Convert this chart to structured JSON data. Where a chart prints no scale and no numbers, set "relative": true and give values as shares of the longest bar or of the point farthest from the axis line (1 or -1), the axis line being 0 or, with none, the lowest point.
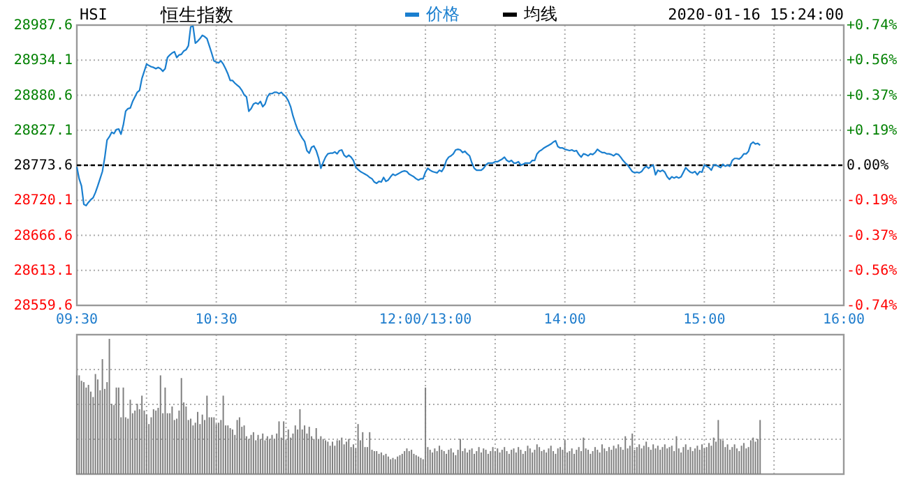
{
  "chart_data": [
    {
      "type": "line",
      "subtitle": "HSI",
      "title": "恒生指数",
      "annotations": [
        "2020-01-16 15:24:00"
      ],
      "categories": [
        "09:30",
        null,
        null,
        null,
        null,
        null,
        null,
        null,
        null,
        null,
        null,
        null,
        null,
        null,
        null,
        null,
        null,
        null,
        null,
        null,
        null,
        null,
        null,
        null,
        null,
        null,
        null,
        null,
        null,
        null,
        null,
        null,
        null,
        null,
        null,
        null,
        null,
        null,
        null,
        null,
        null,
        null,
        null,
        null,
        null,
        null,
        null,
        null,
        null,
        null,
        null,
        null,
        null,
        null,
        null,
        null,
        null,
        null,
        null,
        null,
        "10:30",
        null,
        null,
        null,
        null,
        null,
        null,
        null,
        null,
        null,
        null,
        null,
        null,
        null,
        null,
        null,
        null,
        null,
        null,
        null,
        null,
        null,
        null,
        null,
        null,
        null,
        null,
        null,
        null,
        null,
        null,
        null,
        null,
        null,
        null,
        null,
        null,
        null,
        null,
        null,
        null,
        null,
        null,
        null,
        null,
        null,
        null,
        null,
        null,
        null,
        null,
        null,
        null,
        null,
        null,
        null,
        null,
        null,
        null,
        null,
        null,
        null,
        null,
        null,
        null,
        null,
        null,
        null,
        null,
        null,
        null,
        null,
        null,
        null,
        null,
        null,
        null,
        null,
        null,
        null,
        null,
        null,
        null,
        null,
        null,
        null,
        null,
        null,
        null,
        null,
        "12:00/13:00",
        null,
        null,
        null,
        null,
        null,
        null,
        null,
        null,
        null,
        null,
        null,
        null,
        null,
        null,
        null,
        null,
        null,
        null,
        null,
        null,
        null,
        null,
        null,
        null,
        null,
        null,
        null,
        null,
        null,
        null,
        null,
        null,
        null,
        null,
        null,
        null,
        null,
        null,
        null,
        null,
        null,
        null,
        null,
        null,
        null,
        null,
        null,
        null,
        null,
        null,
        null,
        null,
        null,
        null,
        null,
        null,
        null,
        null,
        null,
        "14:00",
        null,
        null,
        null,
        null,
        null,
        null,
        null,
        null,
        null,
        null,
        null,
        null,
        null,
        null,
        null,
        null,
        null,
        null,
        null,
        null,
        null,
        null,
        null,
        null,
        null,
        null,
        null,
        null,
        null,
        null,
        null,
        null,
        null,
        null,
        null,
        null,
        null,
        null,
        null,
        null,
        null,
        null,
        null,
        null,
        null,
        null,
        null,
        null,
        null,
        null,
        null,
        null,
        null,
        null,
        null,
        null,
        null,
        null,
        null,
        "15:00",
        null,
        null,
        null,
        null,
        null,
        null,
        null,
        null,
        null,
        null,
        null,
        null,
        null,
        null,
        null,
        null,
        null,
        null,
        null,
        null,
        null,
        null,
        null,
        null,
        null,
        null,
        null,
        null,
        null,
        null,
        null,
        null,
        null,
        null,
        null,
        null,
        null,
        null,
        null,
        null,
        null,
        null,
        null,
        null,
        null,
        null,
        null,
        null,
        null,
        null,
        null,
        null,
        null,
        null,
        null,
        null,
        null,
        null,
        null,
        "16:00"
      ],
      "ylim": [
        28559.6,
        28987.6
      ],
      "yticks": [
        28559.6,
        28613.1,
        28666.6,
        28720.1,
        28773.6,
        28827.1,
        28880.6,
        28934.1,
        28987.6
      ],
      "y2lim": [
        -0.744,
        0.744
      ],
      "y2ticks": [
        {
          "value": -0.744,
          "label": "-0.74%"
        },
        {
          "value": -0.558,
          "label": "-0.56%"
        },
        {
          "value": -0.372,
          "label": "-0.37%"
        },
        {
          "value": -0.186,
          "label": "-0.19%"
        },
        {
          "value": 0,
          "label": "0.00%"
        },
        {
          "value": 0.186,
          "label": "+0.19%"
        },
        {
          "value": 0.372,
          "label": "+0.37%"
        },
        {
          "value": 0.558,
          "label": "+0.56%"
        },
        {
          "value": 0.744,
          "label": "+0.74%"
        }
      ],
      "grid": true,
      "legend": "top",
      "ref_lines": [
        {
          "axis": "y",
          "value": 28773.6,
          "color": "#000000",
          "line_style": "dashed"
        }
      ],
      "series": [
        {
          "name": "价格",
          "color": "#1a7fcf",
          "values": [
            28771,
            28753,
            28742,
            28714,
            28712,
            28717,
            28721,
            28724,
            28732,
            28742,
            28753,
            28764,
            28785,
            28812,
            28817,
            28824,
            28822,
            28828,
            28829,
            28821,
            28835,
            28856,
            28860,
            28861,
            28871,
            28878,
            28885,
            28888,
            28906,
            28917,
            28928,
            28926,
            28924,
            28923,
            28921,
            28923,
            28921,
            28917,
            28921,
            28938,
            28942,
            28945,
            28947,
            28938,
            28942,
            28943,
            28948,
            28950,
            28956,
            28985,
            28986,
            28960,
            28963,
            28967,
            28972,
            28970,
            28967,
            28956,
            28945,
            28933,
            28931,
            28930,
            28933,
            28928,
            28921,
            28913,
            28903,
            28903,
            28899,
            28896,
            28893,
            28888,
            28881,
            28878,
            28856,
            28860,
            28867,
            28869,
            28867,
            28871,
            28863,
            28867,
            28878,
            28883,
            28883,
            28885,
            28885,
            28883,
            28885,
            28881,
            28878,
            28872,
            28863,
            28849,
            28838,
            28828,
            28821,
            28815,
            28810,
            28796,
            28792,
            28801,
            28803,
            28796,
            28785,
            28769,
            28778,
            28786,
            28791,
            28792,
            28792,
            28794,
            28791,
            28796,
            28797,
            28789,
            28786,
            28789,
            28786,
            28781,
            28771,
            28767,
            28764,
            28762,
            28760,
            28758,
            28755,
            28753,
            28748,
            28746,
            28749,
            28748,
            28755,
            28749,
            28751,
            28756,
            28760,
            28758,
            28760,
            28762,
            28764,
            28765,
            28764,
            28760,
            28758,
            28756,
            28753,
            28751,
            28753,
            28753,
            28763,
            28769,
            28766,
            28764,
            28763,
            28762,
            28766,
            28764,
            28770,
            28781,
            28786,
            28788,
            28791,
            28797,
            28798,
            28797,
            28793,
            28795,
            28791,
            28788,
            28777,
            28769,
            28766,
            28766,
            28766,
            28769,
            28774,
            28777,
            28777,
            28777,
            28779,
            28779,
            28781,
            28783,
            28786,
            28781,
            28779,
            28781,
            28777,
            28777,
            28779,
            28774,
            28775,
            28777,
            28777,
            28777,
            28781,
            28781,
            28791,
            28795,
            28797,
            28800,
            28802,
            28804,
            28806,
            28809,
            28811,
            28802,
            28800,
            28800,
            28798,
            28797,
            28796,
            28797,
            28795,
            28796,
            28790,
            28786,
            28791,
            28790,
            28788,
            28791,
            28790,
            28793,
            28798,
            28795,
            28793,
            28793,
            28791,
            28791,
            28790,
            28788,
            28791,
            28790,
            28786,
            28781,
            28777,
            28774,
            28769,
            28764,
            28762,
            28763,
            28762,
            28764,
            28769,
            28772,
            28769,
            28772,
            28774,
            28759,
            28766,
            28764,
            28766,
            28763,
            28756,
            28752,
            28756,
            28754,
            28756,
            28754,
            28756,
            28763,
            28770,
            28766,
            28763,
            28762,
            28764,
            28759,
            28764,
            28763,
            28774,
            28772,
            28770,
            28766,
            28774,
            28774,
            28772,
            28770,
            28775,
            28772,
            28774,
            28772,
            28781,
            28784,
            28784,
            28783,
            28786,
            28791,
            28791,
            28795,
            28806,
            28809,
            28806,
            28807,
            28804,
            null,
            null,
            null,
            null,
            null,
            null,
            null,
            null,
            null,
            null,
            null,
            null,
            null,
            null,
            null,
            null,
            null,
            null,
            null,
            null,
            null,
            null,
            null,
            null,
            null,
            null,
            null,
            null,
            null,
            null,
            null,
            null,
            null,
            null,
            null,
            null
          ]
        },
        {
          "name": "均线",
          "color": "#000000",
          "values": [
            null,
            null,
            null,
            null,
            null,
            null,
            null,
            null,
            null,
            null,
            null,
            null,
            null,
            null,
            null,
            null,
            null,
            null,
            null,
            null,
            null,
            null,
            null,
            null,
            null,
            null,
            null,
            null,
            null,
            null,
            null,
            null,
            null,
            null,
            null,
            null,
            null,
            null,
            null,
            null,
            null,
            null,
            null,
            null,
            null,
            null,
            null,
            null,
            null,
            null,
            null,
            null,
            null,
            null,
            null,
            null,
            null,
            null,
            null,
            null,
            null,
            null,
            null,
            null,
            null,
            null,
            null,
            null,
            null,
            null,
            null,
            null,
            null,
            null,
            null,
            null,
            null,
            null,
            null,
            null,
            null,
            null,
            null,
            null,
            null,
            null,
            null,
            null,
            null,
            null,
            null,
            null,
            null,
            null,
            null,
            null,
            null,
            null,
            null,
            null,
            null,
            null,
            null,
            null,
            null,
            null,
            null,
            null,
            null,
            null,
            null,
            null,
            null,
            null,
            null,
            null,
            null,
            null,
            null,
            null,
            null,
            null,
            null,
            null,
            null,
            null,
            null,
            null,
            null,
            null,
            null,
            null,
            null,
            null,
            null,
            null,
            null,
            null,
            null,
            null,
            null,
            null,
            null,
            null,
            null,
            null,
            null,
            null,
            null,
            null,
            null,
            null,
            null,
            null,
            null,
            null,
            null,
            null,
            null,
            null,
            null,
            null,
            null,
            null,
            null,
            null,
            null,
            null,
            null,
            null,
            null,
            null,
            null,
            null,
            null,
            null,
            null,
            null,
            null,
            null,
            null,
            null,
            null,
            null,
            null,
            null,
            null,
            null,
            null,
            null,
            null,
            null,
            null,
            null,
            null,
            null,
            null,
            null,
            null,
            null,
            null,
            null,
            null,
            null,
            null,
            null,
            null,
            null,
            null,
            null,
            null,
            null,
            null,
            null,
            null,
            null,
            null,
            null,
            null,
            null,
            null,
            null,
            null,
            null,
            null,
            null,
            null,
            null,
            null,
            null,
            null,
            null,
            null,
            null,
            null,
            null,
            null,
            null,
            null,
            null,
            null,
            null,
            null,
            null,
            null,
            null,
            null,
            null,
            null,
            null,
            null,
            null,
            null,
            null,
            null,
            null,
            null,
            null,
            null,
            null,
            null,
            null,
            null,
            null,
            null,
            null,
            null,
            null,
            null,
            null,
            null,
            null,
            null,
            null,
            null,
            null,
            null,
            null,
            null,
            null,
            null,
            null,
            null,
            null,
            null,
            null,
            null,
            null,
            null,
            null,
            null,
            null,
            null,
            null,
            null,
            null,
            null,
            null,
            null,
            null,
            null,
            null,
            null,
            null,
            null,
            null,
            null,
            null,
            null,
            null,
            null,
            null,
            null,
            null,
            null,
            null,
            null,
            null,
            null,
            null,
            null,
            null,
            null,
            null,
            null,
            null,
            null,
            null,
            null,
            null,
            null
          ]
        }
      ]
    },
    {
      "type": "bar",
      "relative": true,
      "color": "#808080",
      "grid": true,
      "categories": [
        null,
        null,
        null,
        null,
        null,
        null,
        null,
        null,
        null,
        null,
        null,
        null,
        null,
        null,
        null,
        null,
        null,
        null,
        null,
        null,
        null,
        null,
        null,
        null,
        null,
        null,
        null,
        null,
        null,
        null,
        null,
        null,
        null,
        null,
        null,
        null,
        null,
        null,
        null,
        null,
        null,
        null,
        null,
        null,
        null,
        null,
        null,
        null,
        null,
        null,
        null,
        null,
        null,
        null,
        null,
        null,
        null,
        null,
        null,
        null,
        null,
        null,
        null,
        null,
        null,
        null,
        null,
        null,
        null,
        null,
        null,
        null,
        null,
        null,
        null,
        null,
        null,
        null,
        null,
        null,
        null,
        null,
        null,
        null,
        null,
        null,
        null,
        null,
        null,
        null,
        null,
        null,
        null,
        null,
        null,
        null,
        null,
        null,
        null,
        null,
        null,
        null,
        null,
        null,
        null,
        null,
        null,
        null,
        null,
        null,
        null,
        null,
        null,
        null,
        null,
        null,
        null,
        null,
        null,
        null,
        null,
        null,
        null,
        null,
        null,
        null,
        null,
        null,
        null,
        null,
        null,
        null,
        null,
        null,
        null,
        null,
        null,
        null,
        null,
        null,
        null,
        null,
        null,
        null,
        null,
        null,
        null,
        null,
        null,
        null,
        null,
        null,
        null,
        null,
        null,
        null,
        null,
        null,
        null,
        null,
        null,
        null,
        null,
        null,
        null,
        null,
        null,
        null,
        null,
        null,
        null,
        null,
        null,
        null,
        null,
        null,
        null,
        null,
        null,
        null,
        null,
        null,
        null,
        null,
        null,
        null,
        null,
        null,
        null,
        null,
        null,
        null,
        null,
        null,
        null,
        null,
        null,
        null,
        null,
        null,
        null,
        null,
        null,
        null,
        null,
        null,
        null,
        null,
        null,
        null,
        null,
        null,
        null,
        null,
        null,
        null,
        null,
        null,
        null,
        null,
        null,
        null,
        null,
        null,
        null,
        null,
        null,
        null,
        null,
        null,
        null,
        null,
        null,
        null,
        null,
        null,
        null,
        null,
        null,
        null,
        null,
        null,
        null,
        null,
        null,
        null,
        null,
        null,
        null,
        null,
        null,
        null,
        null,
        null,
        null,
        null,
        null,
        null,
        null,
        null,
        null,
        null,
        null,
        null,
        null,
        null,
        null,
        null,
        null,
        null,
        null,
        null,
        null,
        null,
        null,
        null,
        null,
        null,
        null,
        null,
        null,
        null,
        null,
        null,
        null,
        null,
        null,
        null,
        null,
        null,
        null,
        null,
        null,
        null,
        null,
        null,
        null,
        null,
        null,
        null,
        null,
        null,
        null,
        null,
        null,
        null,
        null,
        null,
        null,
        null,
        null,
        null,
        null,
        null,
        null,
        null,
        null,
        null,
        null,
        null,
        null,
        null,
        null,
        null,
        null,
        null,
        null,
        null,
        null,
        null,
        null
      ],
      "values": [
        0.73,
        0.73,
        0.69,
        0.68,
        0.64,
        0.66,
        0.61,
        0.57,
        0.74,
        0.7,
        0.62,
        0.85,
        0.63,
        0.68,
        1.0,
        0.52,
        0.51,
        0.64,
        0.64,
        0.42,
        0.64,
        0.42,
        0.41,
        0.55,
        0.45,
        0.47,
        0.52,
        0.48,
        0.58,
        0.47,
        0.44,
        0.37,
        0.42,
        0.48,
        0.47,
        0.49,
        0.73,
        0.45,
        0.64,
        0.45,
        0.45,
        0.5,
        0.4,
        0.41,
        0.47,
        0.71,
        0.53,
        0.5,
        0.4,
        0.41,
        0.36,
        0.38,
        0.46,
        0.37,
        0.44,
        0.4,
        0.58,
        0.42,
        0.42,
        0.42,
        0.37,
        0.38,
        0.4,
        0.58,
        0.36,
        0.36,
        0.34,
        0.33,
        0.29,
        0.4,
        0.42,
        0.35,
        0.36,
        0.28,
        0.26,
        0.29,
        0.31,
        0.25,
        0.29,
        0.26,
        0.3,
        0.25,
        0.28,
        0.26,
        0.29,
        0.26,
        0.3,
        0.39,
        0.27,
        0.39,
        0.25,
        0.33,
        0.27,
        0.3,
        0.36,
        0.33,
        0.48,
        0.33,
        0.36,
        0.3,
        0.35,
        0.28,
        0.26,
        0.34,
        0.26,
        0.28,
        0.26,
        0.25,
        0.24,
        0.21,
        0.24,
        0.21,
        0.25,
        0.25,
        0.27,
        0.22,
        0.24,
        0.26,
        0.2,
        0.22,
        0.19,
        0.37,
        0.25,
        0.31,
        0.2,
        0.2,
        0.31,
        0.18,
        0.17,
        0.17,
        0.15,
        0.16,
        0.14,
        0.15,
        0.13,
        0.11,
        0.12,
        0.11,
        0.13,
        0.14,
        0.15,
        0.17,
        0.19,
        0.17,
        0.18,
        0.15,
        0.14,
        0.13,
        0.12,
        0.11,
        0.64,
        0.2,
        0.18,
        0.16,
        0.19,
        0.17,
        0.21,
        0.18,
        0.17,
        0.15,
        0.18,
        0.19,
        0.16,
        0.14,
        0.18,
        0.26,
        0.17,
        0.19,
        0.16,
        0.18,
        0.19,
        0.15,
        0.17,
        0.2,
        0.16,
        0.19,
        0.18,
        0.15,
        0.17,
        0.2,
        0.17,
        0.19,
        0.16,
        0.18,
        0.2,
        0.17,
        0.15,
        0.18,
        0.19,
        0.16,
        0.2,
        0.18,
        0.15,
        0.17,
        0.21,
        0.19,
        0.16,
        0.18,
        0.22,
        0.2,
        0.17,
        0.18,
        0.16,
        0.19,
        0.21,
        0.17,
        0.15,
        0.19,
        0.2,
        0.18,
        0.25,
        0.16,
        0.17,
        0.19,
        0.15,
        0.18,
        0.2,
        0.17,
        0.27,
        0.19,
        0.18,
        0.15,
        0.17,
        0.2,
        0.18,
        0.16,
        0.22,
        0.19,
        0.17,
        0.2,
        0.18,
        0.21,
        0.19,
        0.22,
        0.2,
        0.18,
        0.28,
        0.19,
        0.21,
        0.3,
        0.18,
        0.2,
        0.22,
        0.19,
        0.21,
        0.24,
        0.2,
        0.18,
        0.22,
        0.19,
        0.21,
        0.18,
        0.2,
        0.22,
        0.19,
        0.2,
        0.21,
        0.17,
        0.28,
        0.19,
        0.16,
        0.2,
        0.22,
        0.18,
        0.2,
        0.17,
        0.19,
        0.21,
        0.18,
        0.22,
        0.19,
        0.2,
        0.23,
        0.21,
        0.27,
        0.24,
        0.4,
        0.26,
        0.25,
        0.2,
        0.22,
        0.18,
        0.2,
        0.22,
        0.19,
        0.17,
        0.21,
        0.23,
        0.19,
        0.2,
        0.25,
        0.27,
        0.24,
        0.26,
        0.4,
        null,
        null,
        null,
        null,
        null,
        null,
        null,
        null,
        null,
        null,
        null,
        null,
        null,
        null,
        null,
        null,
        null,
        null,
        null,
        null,
        null,
        null,
        null,
        null,
        null,
        null,
        null,
        null,
        null,
        null,
        null,
        null,
        null,
        null,
        null,
        null
      ]
    }
  ]
}
